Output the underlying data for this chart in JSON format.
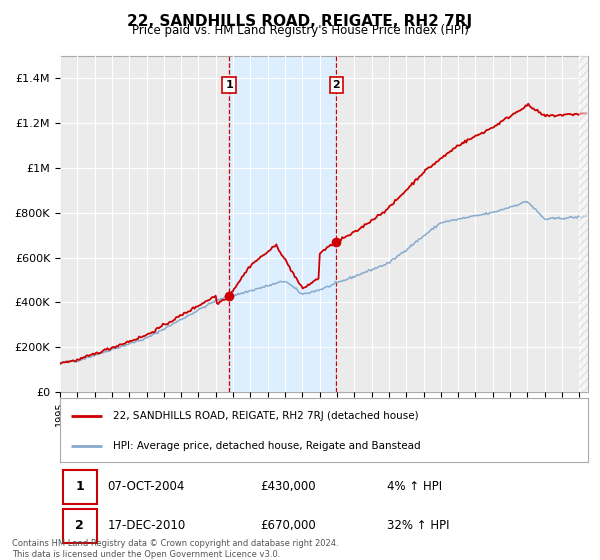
{
  "title": "22, SANDHILLS ROAD, REIGATE, RH2 7RJ",
  "subtitle": "Price paid vs. HM Land Registry's House Price Index (HPI)",
  "red_label": "22, SANDHILLS ROAD, REIGATE, RH2 7RJ (detached house)",
  "blue_label": "HPI: Average price, detached house, Reigate and Banstead",
  "transaction1_date": "07-OCT-2004",
  "transaction1_price": 430000,
  "transaction1_hpi": "4% ↑ HPI",
  "transaction2_date": "17-DEC-2010",
  "transaction2_price": 670000,
  "transaction2_hpi": "32% ↑ HPI",
  "footer": "Contains HM Land Registry data © Crown copyright and database right 2024.\nThis data is licensed under the Open Government Licence v3.0.",
  "ylim": [
    0,
    1500000
  ],
  "yticks": [
    0,
    200000,
    400000,
    600000,
    800000,
    1000000,
    1200000,
    1400000
  ],
  "ytick_labels": [
    "£0",
    "£200K",
    "£400K",
    "£600K",
    "£800K",
    "£1M",
    "£1.2M",
    "£1.4M"
  ],
  "background_color": "#ffffff",
  "plot_bg_color": "#ebebeb",
  "grid_color": "#ffffff",
  "red_color": "#cc0000",
  "blue_color": "#88aacc",
  "highlight_color": "#ddeeff",
  "marker1_x": 2004.77,
  "marker1_y": 430000,
  "marker2_x": 2010.96,
  "marker2_y": 670000,
  "xmin": 1995,
  "xmax": 2025.5
}
